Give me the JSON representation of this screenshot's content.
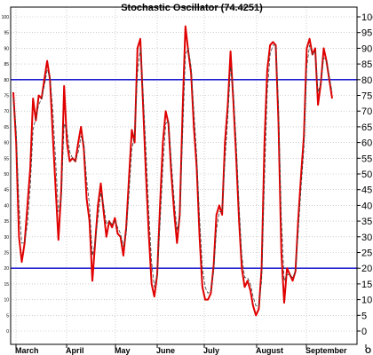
{
  "chart_data": {
    "type": "line",
    "title": "Stochastic Oscillator (74.4251)",
    "ylim": [
      0,
      100
    ],
    "y_ticks": [
      "0",
      "5",
      "10",
      "15",
      "20",
      "25",
      "30",
      "35",
      "40",
      "45",
      "50",
      "55",
      "60",
      "65",
      "70",
      "75",
      "80",
      "85",
      "90",
      "95",
      "100"
    ],
    "x_labels": [
      "March",
      "April",
      "May",
      "June",
      "July",
      "August",
      "September",
      "O"
    ],
    "reference_lines": [
      20,
      80
    ],
    "grid": true,
    "colors": {
      "k_line": "#e00000",
      "d_line": "#404040",
      "reference": "#0000cc",
      "grid": "#b0b0b0"
    },
    "series": [
      {
        "style": "solid",
        "values": [
          76,
          60,
          30,
          22,
          28,
          40,
          52,
          74,
          67,
          75,
          74,
          80,
          86,
          80,
          62,
          45,
          29,
          45,
          78,
          60,
          54,
          55,
          54,
          60,
          65,
          58,
          42,
          35,
          16,
          28,
          40,
          47,
          38,
          30,
          35,
          33,
          36,
          31,
          30,
          24,
          33,
          49,
          64,
          60,
          90,
          93,
          72,
          50,
          31,
          15,
          11,
          18,
          40,
          60,
          70,
          66,
          50,
          38,
          28,
          37,
          70,
          97,
          89,
          82,
          65,
          52,
          30,
          14,
          10,
          10,
          12,
          21,
          37,
          40,
          37,
          60,
          72,
          89,
          73,
          55,
          35,
          20,
          14,
          16,
          13,
          8,
          5,
          7,
          20,
          60,
          83,
          91,
          92,
          91,
          66,
          25,
          9,
          20,
          18,
          16,
          19,
          36,
          50,
          62,
          90,
          93,
          88,
          90,
          72,
          79,
          90,
          86,
          80,
          74
        ]
      },
      {
        "style": "dashed",
        "values": [
          74,
          64,
          40,
          28,
          28,
          34,
          46,
          64,
          68,
          72,
          74,
          78,
          83,
          81,
          70,
          54,
          38,
          42,
          66,
          64,
          57,
          55,
          54,
          57,
          62,
          60,
          48,
          40,
          24,
          28,
          36,
          44,
          40,
          34,
          35,
          34,
          35,
          33,
          31,
          27,
          31,
          44,
          58,
          62,
          82,
          90,
          76,
          58,
          38,
          22,
          14,
          18,
          34,
          52,
          66,
          67,
          54,
          42,
          32,
          36,
          62,
          88,
          90,
          84,
          70,
          56,
          36,
          20,
          14,
          12,
          13,
          19,
          32,
          38,
          38,
          54,
          68,
          84,
          76,
          60,
          40,
          24,
          17,
          17,
          15,
          11,
          8,
          8,
          16,
          48,
          76,
          88,
          91,
          91,
          72,
          36,
          16,
          18,
          18,
          17,
          19,
          32,
          46,
          58,
          84,
          91,
          88,
          89,
          76,
          79,
          87,
          86,
          81,
          76
        ]
      }
    ]
  }
}
